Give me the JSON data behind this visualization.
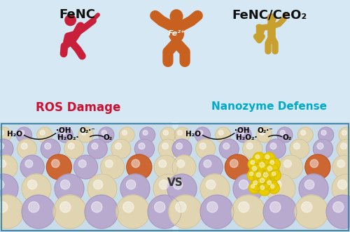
{
  "background_color": "#d6e8f4",
  "lattice_bg": "#c8dcea",
  "title_left": "FeNC",
  "title_right": "FeNC/CeO₂",
  "label_left_red": "ROS Damage",
  "label_right_cyan": "Nanozyme Defense",
  "vs_text": "VS",
  "figure_color_red": "#c8203a",
  "figure_color_orange": "#c86020",
  "figure_color_gold": "#c8a030",
  "sphere_purple": "#b8aacf",
  "sphere_cream": "#e0d5b0",
  "sphere_orange": "#cc6633",
  "sphere_yellow": "#e8cc00",
  "sphere_yellow_dark": "#c8aa00",
  "text_color_black": "#111111",
  "text_color_red": "#cc1133",
  "text_color_cyan": "#00aacc",
  "border_color": "#4488aa"
}
